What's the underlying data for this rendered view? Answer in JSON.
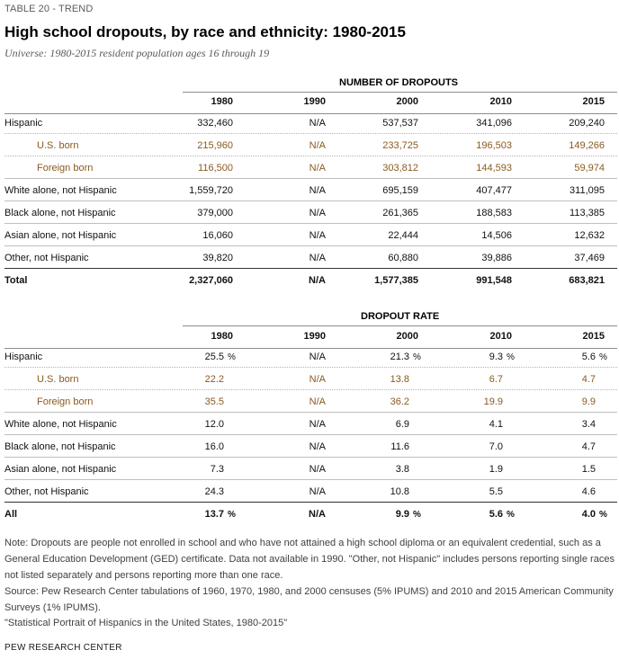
{
  "header": {
    "label": "TABLE 20 - TREND",
    "title": "High school dropouts, by race and ethnicity: 1980-2015",
    "universe": "Universe: 1980-2015 resident population ages 16 through 19"
  },
  "years": [
    "1980",
    "1990",
    "2000",
    "2010",
    "2015"
  ],
  "dropouts": {
    "section_title": "NUMBER OF DROPOUTS",
    "rows": [
      {
        "label": "Hispanic",
        "values": [
          "332,460",
          "N/A",
          "537,537",
          "341,096",
          "209,240"
        ]
      },
      {
        "label": "U.S. born",
        "values": [
          "215,960",
          "N/A",
          "233,725",
          "196,503",
          "149,266"
        ]
      },
      {
        "label": "Foreign born",
        "values": [
          "116,500",
          "N/A",
          "303,812",
          "144,593",
          "59,974"
        ]
      },
      {
        "label": "White alone, not Hispanic",
        "values": [
          "1,559,720",
          "N/A",
          "695,159",
          "407,477",
          "311,095"
        ]
      },
      {
        "label": "Black alone, not Hispanic",
        "values": [
          "379,000",
          "N/A",
          "261,365",
          "188,583",
          "113,385"
        ]
      },
      {
        "label": "Asian alone, not Hispanic",
        "values": [
          "16,060",
          "N/A",
          "22,444",
          "14,506",
          "12,632"
        ]
      },
      {
        "label": "Other, not Hispanic",
        "values": [
          "39,820",
          "N/A",
          "60,880",
          "39,886",
          "37,469"
        ]
      },
      {
        "label": "Total",
        "values": [
          "2,327,060",
          "N/A",
          "1,577,385",
          "991,548",
          "683,821"
        ]
      }
    ]
  },
  "rates": {
    "section_title": "DROPOUT RATE",
    "pct_sign": "%",
    "rows": [
      {
        "label": "Hispanic",
        "values": [
          "25.5",
          "N/A",
          "21.3",
          "9.3",
          "5.6"
        ]
      },
      {
        "label": "U.S. born",
        "values": [
          "22.2",
          "N/A",
          "13.8",
          "6.7",
          "4.7"
        ]
      },
      {
        "label": "Foreign born",
        "values": [
          "35.5",
          "N/A",
          "36.2",
          "19.9",
          "9.9"
        ]
      },
      {
        "label": "White alone, not Hispanic",
        "values": [
          "12.0",
          "N/A",
          "6.9",
          "4.1",
          "3.4"
        ]
      },
      {
        "label": "Black alone, not Hispanic",
        "values": [
          "16.0",
          "N/A",
          "11.6",
          "7.0",
          "4.7"
        ]
      },
      {
        "label": "Asian alone, not Hispanic",
        "values": [
          "7.3",
          "N/A",
          "3.8",
          "1.9",
          "1.5"
        ]
      },
      {
        "label": "Other, not Hispanic",
        "values": [
          "24.3",
          "N/A",
          "10.8",
          "5.5",
          "4.6"
        ]
      },
      {
        "label": "All",
        "values": [
          "13.7",
          "N/A",
          "9.9",
          "5.6",
          "4.0"
        ]
      }
    ]
  },
  "notes": {
    "note": "Note: Dropouts are people not enrolled in school and who have not attained a high school diploma or an equivalent credential, such as a General Education Development (GED) certificate. Data not available in 1990. \"Other, not Hispanic\" includes persons reporting single races not listed separately and persons reporting more than one race.",
    "source": "Source: Pew Research Center tabulations of 1960, 1970, 1980, and 2000 censuses (5% IPUMS) and 2010 and 2015 American Community Surveys (1% IPUMS).",
    "report": "\"Statistical Portrait of Hispanics in the United States, 1980-2015\"",
    "credit": "PEW RESEARCH CENTER"
  }
}
